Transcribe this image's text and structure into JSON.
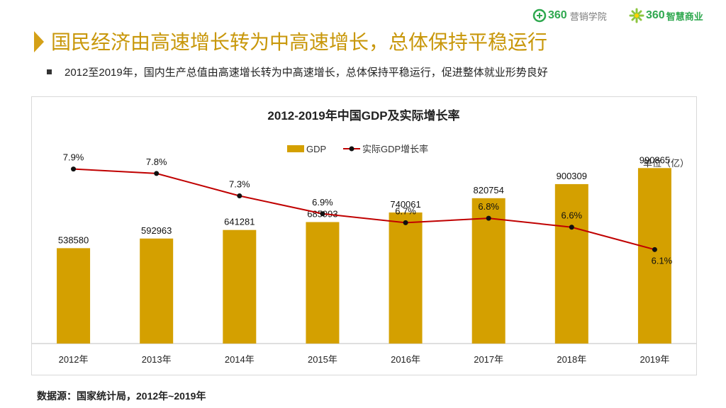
{
  "header": {
    "logo1": {
      "brand": "360",
      "sub": "营销学院"
    },
    "logo2": {
      "brand": "360",
      "sub": "智慧商业"
    },
    "title": "国民经济由高速增长转为中高速增长，总体保持平稳运行"
  },
  "bullet": {
    "text": "2012至2019年，国内生产总值由高速增长转为中高速增长，总体保持平稳运行，促进整体就业形势良好"
  },
  "colors": {
    "accent": "#c8970a",
    "bar": "#d4a000",
    "line": "#c00000",
    "point": "#111111",
    "brand_green": "#2fa84f"
  },
  "chart_data": {
    "type": "bar+line",
    "title": "2012-2019年中国GDP及实际增长率",
    "unit_label": "单位（亿）",
    "categories": [
      "2012年",
      "2013年",
      "2014年",
      "2015年",
      "2016年",
      "2017年",
      "2018年",
      "2019年"
    ],
    "series": [
      {
        "name": "GDP",
        "type": "bar",
        "values": [
          538580,
          592963,
          641281,
          685993,
          740061,
          820754,
          900309,
          990865
        ],
        "labels": [
          "538580",
          "592963",
          "641281",
          "685993",
          "740061",
          "820754",
          "900309",
          "990865"
        ]
      },
      {
        "name": "实际GDP增长率",
        "type": "line",
        "values": [
          7.9,
          7.8,
          7.3,
          6.9,
          6.7,
          6.8,
          6.6,
          6.1
        ],
        "labels": [
          "7.9%",
          "7.8%",
          "7.3%",
          "6.9%",
          "6.7%",
          "6.8%",
          "6.6%",
          "6.1%"
        ]
      }
    ],
    "bar_ylim": [
      0,
      1200000
    ],
    "line_ylim": [
      4.0,
      8.4
    ],
    "legend": "top-center",
    "grid": false
  },
  "source": {
    "text": "数据源：国家统计局，2012年~2019年"
  }
}
